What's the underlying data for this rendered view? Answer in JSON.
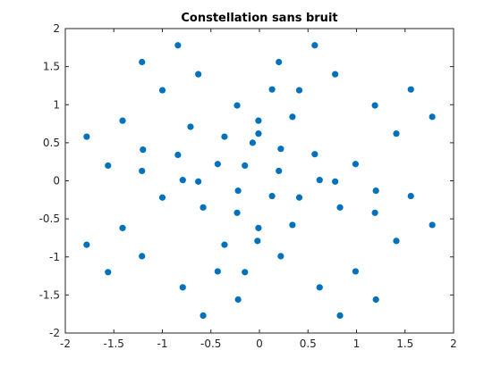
{
  "chart_data": {
    "type": "scatter",
    "title": "Constellation sans bruit",
    "xlabel": "",
    "ylabel": "",
    "xlim": [
      -2,
      2
    ],
    "ylim": [
      -2,
      2
    ],
    "xticks": [
      -2,
      -1.5,
      -1,
      -0.5,
      0,
      0.5,
      1,
      1.5,
      2
    ],
    "yticks": [
      -2,
      -1.5,
      -1,
      -0.5,
      0,
      0.5,
      1,
      1.5,
      2
    ],
    "xtick_labels": [
      "-2",
      "-1.5",
      "-1",
      "-0.5",
      "0",
      "0.5",
      "1",
      "1.5",
      "2"
    ],
    "ytick_labels": [
      "-2",
      "-1.5",
      "-1",
      "-0.5",
      "0",
      "0.5",
      "1",
      "1.5",
      "2"
    ],
    "grid": false,
    "marker_color": "#0072bd",
    "axis_color": "#262626",
    "series": [
      {
        "points": [
          [
            -0.84,
            1.78
          ],
          [
            0.57,
            1.78
          ],
          [
            -1.21,
            1.56
          ],
          [
            0.2,
            1.56
          ],
          [
            -0.63,
            1.4
          ],
          [
            0.78,
            1.4
          ],
          [
            -1.0,
            1.19
          ],
          [
            0.13,
            1.2
          ],
          [
            0.41,
            1.19
          ],
          [
            1.56,
            1.2
          ],
          [
            -0.23,
            0.99
          ],
          [
            1.19,
            0.99
          ],
          [
            -1.41,
            0.79
          ],
          [
            0.34,
            0.84
          ],
          [
            -0.01,
            0.79
          ],
          [
            1.78,
            0.84
          ],
          [
            -0.71,
            0.71
          ],
          [
            -0.01,
            0.62
          ],
          [
            1.41,
            0.62
          ],
          [
            -1.78,
            0.58
          ],
          [
            -0.36,
            0.58
          ],
          [
            -0.07,
            0.5
          ],
          [
            -1.2,
            0.41
          ],
          [
            0.22,
            0.42
          ],
          [
            -0.84,
            0.34
          ],
          [
            0.57,
            0.35
          ],
          [
            -1.56,
            0.2
          ],
          [
            -0.43,
            0.22
          ],
          [
            -0.15,
            0.2
          ],
          [
            0.99,
            0.22
          ],
          [
            -1.21,
            0.13
          ],
          [
            0.2,
            0.13
          ],
          [
            -0.79,
            0.01
          ],
          [
            -0.63,
            -0.01
          ],
          [
            0.62,
            0.01
          ],
          [
            0.78,
            -0.01
          ],
          [
            -0.22,
            -0.13
          ],
          [
            1.2,
            -0.13
          ],
          [
            -1.0,
            -0.22
          ],
          [
            0.13,
            -0.2
          ],
          [
            0.41,
            -0.22
          ],
          [
            1.56,
            -0.2
          ],
          [
            -0.58,
            -0.35
          ],
          [
            0.83,
            -0.35
          ],
          [
            -0.23,
            -0.42
          ],
          [
            1.19,
            -0.42
          ],
          [
            -1.41,
            -0.62
          ],
          [
            0.34,
            -0.58
          ],
          [
            -0.01,
            -0.62
          ],
          [
            1.78,
            -0.58
          ],
          [
            -0.36,
            -0.84
          ],
          [
            -0.02,
            -0.79
          ],
          [
            1.41,
            -0.79
          ],
          [
            -1.78,
            -0.84
          ],
          [
            -1.21,
            -0.99
          ],
          [
            0.22,
            -0.99
          ],
          [
            -1.56,
            -1.2
          ],
          [
            -0.43,
            -1.19
          ],
          [
            -0.15,
            -1.2
          ],
          [
            0.99,
            -1.19
          ],
          [
            -0.79,
            -1.4
          ],
          [
            0.62,
            -1.4
          ],
          [
            -0.22,
            -1.56
          ],
          [
            1.2,
            -1.56
          ],
          [
            -0.58,
            -1.77
          ],
          [
            0.83,
            -1.77
          ]
        ]
      }
    ]
  }
}
